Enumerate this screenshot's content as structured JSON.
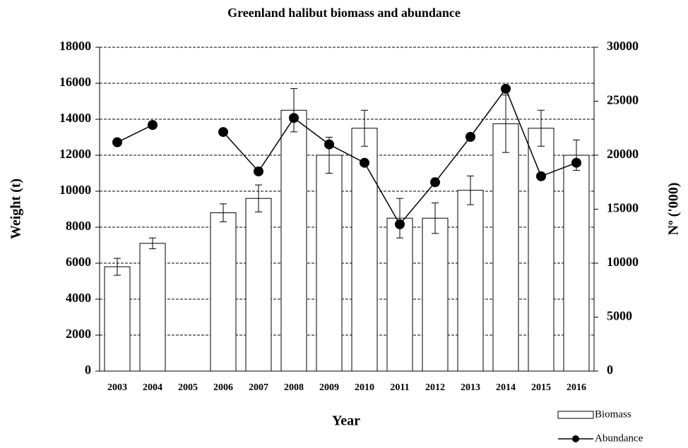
{
  "chart_data": {
    "type": "bar",
    "title": "Greenland halibut biomass and abundance",
    "x_label": "Year",
    "y_label": "Weight (t)",
    "y2_label": "Nº ('000)",
    "categories": [
      "2003",
      "2004",
      "2005",
      "2006",
      "2007",
      "2008",
      "2009",
      "2010",
      "2011",
      "2012",
      "2013",
      "2014",
      "2015",
      "2016"
    ],
    "series": [
      {
        "name": "Biomass",
        "type": "bar",
        "color": "#ffffff",
        "values": [
          5800,
          7100,
          null,
          8800,
          9600,
          14500,
          12000,
          13500,
          8500,
          8500,
          10050,
          13750,
          13500,
          12000
        ],
        "errors": [
          470,
          300,
          null,
          500,
          750,
          1200,
          1000,
          1000,
          1100,
          850,
          800,
          1600,
          1000,
          850
        ]
      },
      {
        "name": "Abundance",
        "type": "line",
        "color": "#000000",
        "axis": "y2",
        "values": [
          21200,
          22800,
          null,
          22150,
          18500,
          23450,
          21000,
          19300,
          13600,
          17500,
          21700,
          26150,
          18050,
          19300
        ]
      }
    ],
    "ylim": [
      0,
      18000
    ],
    "yticks": [
      0,
      2000,
      4000,
      6000,
      8000,
      10000,
      12000,
      14000,
      16000,
      18000
    ],
    "y2lim": [
      0,
      30000
    ],
    "y2ticks": [
      0,
      5000,
      10000,
      15000,
      20000,
      25000,
      30000
    ],
    "grid": true,
    "legend": "bottom-right"
  }
}
